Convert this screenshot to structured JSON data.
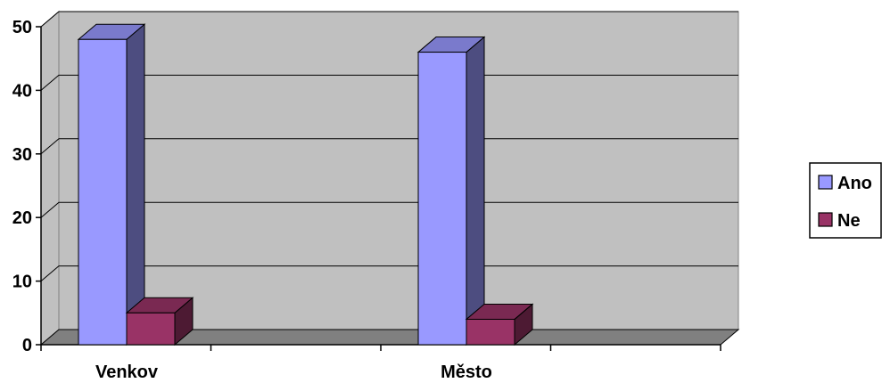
{
  "chart_data": {
    "type": "bar",
    "title": "",
    "xlabel": "",
    "ylabel": "",
    "categories": [
      "Venkov",
      "Město"
    ],
    "series": [
      {
        "name": "Ano",
        "values": [
          48,
          46
        ],
        "color": "#9999ff",
        "side_color": "#4d4d80",
        "top_color": "#7a7acc"
      },
      {
        "name": "Ne",
        "values": [
          5,
          4
        ],
        "color": "#993366",
        "side_color": "#4d1a33",
        "top_color": "#7a2952"
      }
    ],
    "ylim": [
      0,
      50
    ],
    "yticks": [
      0,
      10,
      20,
      30,
      40,
      50
    ],
    "grid": true,
    "three_d": true,
    "legend_position": "right",
    "colors": {
      "wall": "#c0c0c0",
      "floor": "#808080",
      "grid": "#000000"
    }
  }
}
